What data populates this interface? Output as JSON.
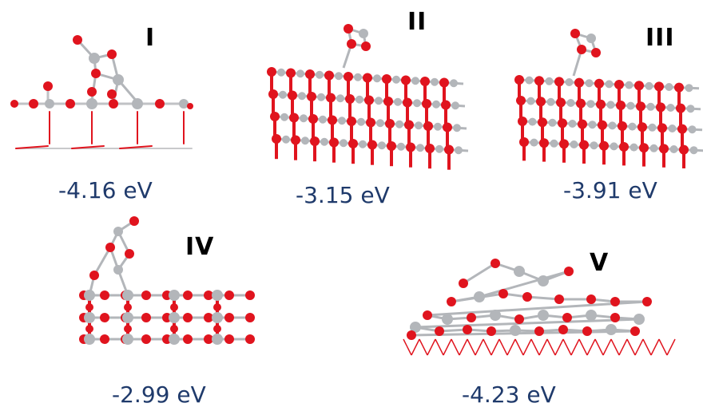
{
  "colors": {
    "oxygen": "#e0141e",
    "metal": "#b3b6ba",
    "label": "#1f3a6b",
    "roman": "#000000"
  },
  "structures": [
    {
      "id": "I",
      "roman": "I",
      "energy": "-4.16 eV"
    },
    {
      "id": "II",
      "roman": "II",
      "energy": "-3.15 eV"
    },
    {
      "id": "III",
      "roman": "III",
      "energy": "-3.91 eV"
    },
    {
      "id": "IV",
      "roman": "IV",
      "energy": "-2.99 eV"
    },
    {
      "id": "V",
      "roman": "V",
      "energy": "-4.23 eV"
    }
  ]
}
